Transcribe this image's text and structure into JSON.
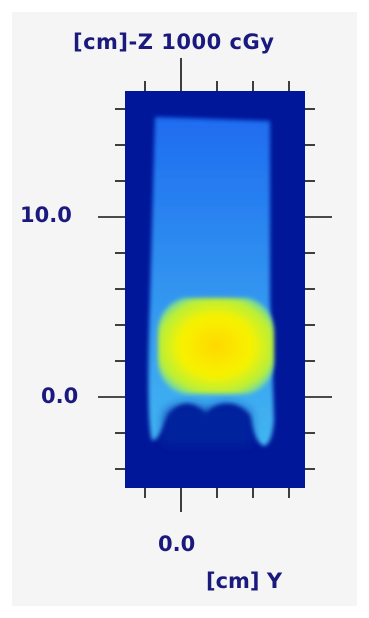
{
  "figure": {
    "title": "[cm]-Z 1000 cGy",
    "dose_label": "1000 cGy",
    "vertical_axis": {
      "unit_label": "[cm]-Z",
      "tick_labels": [
        "10.0",
        "0.0"
      ]
    },
    "horizontal_axis": {
      "title": "[cm] Y",
      "tick_labels": [
        "0.0"
      ]
    },
    "colors": {
      "background": "#00179a",
      "beam_low": "#1f6cf0",
      "beam_mid": "#43b6f2",
      "hotspot": "#f7f200",
      "label": "#1a1a7e"
    }
  }
}
